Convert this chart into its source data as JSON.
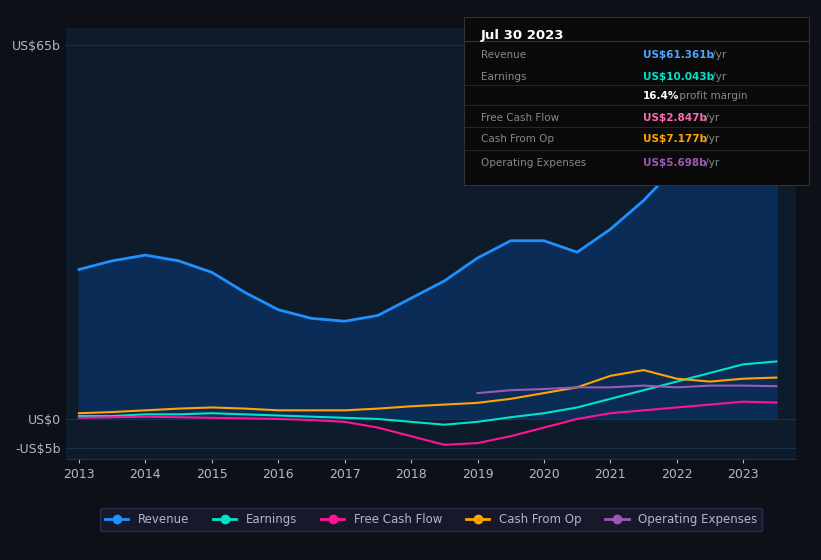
{
  "background_color": "#0d1117",
  "plot_bg_color": "#0d1b2a",
  "title_date": "Jul 30 2023",
  "years": [
    2013,
    2013.5,
    2014,
    2014.5,
    2015,
    2015.5,
    2016,
    2016.5,
    2017,
    2017.5,
    2018,
    2018.5,
    2019,
    2019.5,
    2020,
    2020.5,
    2021,
    2021.5,
    2022,
    2022.5,
    2023,
    2023.5
  ],
  "revenue": [
    26,
    27.5,
    28.5,
    27.5,
    25.5,
    22,
    19,
    17.5,
    17,
    18,
    21,
    24,
    28,
    31,
    31,
    29,
    33,
    38,
    44,
    50,
    58,
    61.4
  ],
  "earnings": [
    0.5,
    0.5,
    0.8,
    0.8,
    1.0,
    0.8,
    0.6,
    0.4,
    0.2,
    0.0,
    -0.5,
    -1.0,
    -0.5,
    0.3,
    1.0,
    2.0,
    3.5,
    5.0,
    6.5,
    8.0,
    9.5,
    10.0
  ],
  "free_cash_flow": [
    0.2,
    0.3,
    0.4,
    0.3,
    0.2,
    0.1,
    0.0,
    -0.2,
    -0.5,
    -1.5,
    -3.0,
    -4.5,
    -4.2,
    -3.0,
    -1.5,
    0.0,
    1.0,
    1.5,
    2.0,
    2.5,
    3.0,
    2.85
  ],
  "cash_from_op": [
    1.0,
    1.2,
    1.5,
    1.8,
    2.0,
    1.8,
    1.5,
    1.5,
    1.5,
    1.8,
    2.2,
    2.5,
    2.8,
    3.5,
    4.5,
    5.5,
    7.5,
    8.5,
    7.0,
    6.5,
    7.0,
    7.2
  ],
  "operating_expenses": [
    0.0,
    0.0,
    0.0,
    0.0,
    0.0,
    0.0,
    0.0,
    0.0,
    0.0,
    0.0,
    0.0,
    0.0,
    4.5,
    5.0,
    5.2,
    5.5,
    5.5,
    5.8,
    5.5,
    5.8,
    5.8,
    5.7
  ],
  "revenue_color": "#1e90ff",
  "revenue_fill_color": "#0a3060",
  "earnings_color": "#00e5c8",
  "free_cash_flow_color": "#ff1493",
  "cash_from_op_color": "#ffa500",
  "operating_expenses_color": "#9b59b6",
  "ylim": [
    -7,
    68
  ],
  "yticks": [
    -5,
    0,
    65
  ],
  "ytick_labels": [
    "-US$5b",
    "US$0",
    "US$65b"
  ],
  "xticks": [
    2013,
    2014,
    2015,
    2016,
    2017,
    2018,
    2019,
    2020,
    2021,
    2022,
    2023
  ],
  "grid_color": "#1e3050",
  "text_color": "#b0b8c8",
  "legend_items": [
    {
      "label": "Revenue",
      "color": "#1e90ff"
    },
    {
      "label": "Earnings",
      "color": "#00e5c8"
    },
    {
      "label": "Free Cash Flow",
      "color": "#ff1493"
    },
    {
      "label": "Cash From Op",
      "color": "#ffa500"
    },
    {
      "label": "Operating Expenses",
      "color": "#9b59b6"
    }
  ],
  "info_rows": [
    {
      "label": "Revenue",
      "value": "US$61.361b",
      "suffix": " /yr",
      "value_color": "#4da6ff"
    },
    {
      "label": "Earnings",
      "value": "US$10.043b",
      "suffix": " /yr",
      "value_color": "#00e5c8"
    },
    {
      "label": "",
      "value": "16.4%",
      "suffix": " profit margin",
      "value_color": "#ffffff"
    },
    {
      "label": "Free Cash Flow",
      "value": "US$2.847b",
      "suffix": " /yr",
      "value_color": "#ff69b4"
    },
    {
      "label": "Cash From Op",
      "value": "US$7.177b",
      "suffix": " /yr",
      "value_color": "#ffa500"
    },
    {
      "label": "Operating Expenses",
      "value": "US$5.698b",
      "suffix": " /yr",
      "value_color": "#9b59b6"
    }
  ]
}
